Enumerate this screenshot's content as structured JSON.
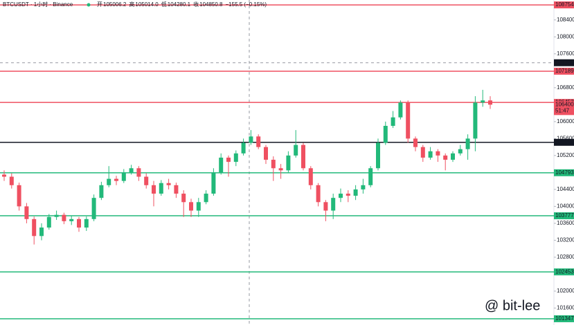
{
  "chart_data": {
    "type": "candlestick",
    "title": "BTCUSDT · 1小时 · Binance",
    "legend_items": [
      "开",
      "105006.2",
      "高",
      "105014.0",
      "低",
      "104280.1",
      "收",
      "104850.8",
      "−155.5 (−0.15%)"
    ],
    "watermark": "@ bit-lee",
    "up_color": "#22b97a",
    "down_color": "#ef5061",
    "ylim": [
      101200,
      108870
    ],
    "yticks": [
      {
        "value": 108400,
        "label": "108400.0"
      },
      {
        "value": 108000,
        "label": "108000.0"
      },
      {
        "value": 107600,
        "label": "107600.0"
      },
      {
        "value": 106800,
        "label": "106800.0"
      },
      {
        "value": 106000,
        "label": "106000.0"
      },
      {
        "value": 105600,
        "label": "105600.0"
      },
      {
        "value": 105200,
        "label": "105200.0"
      },
      {
        "value": 104400,
        "label": "104400.0"
      },
      {
        "value": 104000,
        "label": "104000.0"
      },
      {
        "value": 103600,
        "label": "103600.0"
      },
      {
        "value": 103200,
        "label": "103200.0"
      },
      {
        "value": 102800,
        "label": "102800.0"
      },
      {
        "value": 102000,
        "label": "102000.0"
      },
      {
        "value": 101600,
        "label": "101600.0"
      }
    ],
    "levels": [
      {
        "value": 108754.2,
        "color": "#ef5061"
      },
      {
        "value": 107189.4,
        "color": "#ef5061"
      },
      {
        "value": 106453.1,
        "color": "#ef5061"
      },
      {
        "value": 105511.3,
        "color": "#131722"
      },
      {
        "value": 104793.2,
        "color": "#22b97a"
      },
      {
        "value": 103777.5,
        "color": "#22b97a"
      },
      {
        "value": 102453.2,
        "color": "#22b97a"
      },
      {
        "value": 101347.4,
        "color": "#22b97a"
      }
    ],
    "crosshair_price": 107389.2,
    "last_price": 106400.0,
    "countdown": "51:47",
    "open": [
      104750,
      104700,
      104500,
      104000,
      103700,
      103300,
      103500,
      103750,
      103800,
      103650,
      103700,
      103500,
      103700,
      104200,
      104500,
      104650,
      104600,
      104800,
      104900,
      104700,
      104500,
      104300,
      104550,
      104500,
      104300,
      104100,
      103900,
      104100,
      104300,
      104800,
      105150,
      105050,
      105250,
      105500,
      105650,
      105400,
      105100,
      104900,
      104850,
      105200,
      105450,
      104900,
      104500,
      104100,
      103900,
      104200,
      104300,
      104250,
      104400,
      104500,
      104900,
      105500,
      105900,
      106100,
      106450,
      105600,
      105400,
      105150,
      105300,
      105200,
      105100,
      105250,
      105350,
      105600,
      106450,
      106500
    ],
    "high": [
      104850,
      104780,
      104560,
      104080,
      103760,
      103600,
      103820,
      103900,
      103850,
      103780,
      103750,
      103760,
      104280,
      104580,
      104950,
      104720,
      104880,
      104980,
      104950,
      104780,
      104600,
      104620,
      104650,
      104560,
      104380,
      104180,
      104200,
      104380,
      104900,
      105250,
      105200,
      105320,
      105600,
      105800,
      105700,
      105450,
      105180,
      105000,
      105300,
      105800,
      105500,
      104950,
      104550,
      104150,
      104300,
      104420,
      104380,
      104500,
      104650,
      104950,
      105600,
      106000,
      106250,
      106500,
      106500,
      105650,
      105450,
      105400,
      105350,
      105250,
      105300,
      105450,
      105700,
      106600,
      106750,
      106600
    ],
    "low": [
      104600,
      104420,
      103900,
      103600,
      103100,
      103200,
      103450,
      103680,
      103580,
      103560,
      103400,
      103420,
      103650,
      104150,
      104450,
      104500,
      104550,
      104750,
      104600,
      104420,
      104000,
      104250,
      104400,
      104200,
      103750,
      103750,
      103750,
      104050,
      104250,
      104750,
      104700,
      104950,
      105200,
      105450,
      105350,
      105000,
      104600,
      104650,
      104800,
      105150,
      104850,
      104400,
      104000,
      103650,
      103700,
      104100,
      104100,
      104150,
      104300,
      104450,
      104850,
      105450,
      105850,
      106050,
      105500,
      105300,
      105050,
      105100,
      105050,
      104850,
      105050,
      105200,
      105100,
      105300,
      106350,
      106300
    ],
    "close": [
      104700,
      104500,
      104000,
      103700,
      103300,
      103500,
      103750,
      103800,
      103650,
      103700,
      103500,
      103700,
      104200,
      104500,
      104650,
      104600,
      104800,
      104900,
      104700,
      104500,
      104300,
      104550,
      104500,
      104300,
      104100,
      103900,
      104100,
      104300,
      104800,
      105150,
      105050,
      105250,
      105500,
      105650,
      105400,
      105100,
      104900,
      104850,
      105200,
      105450,
      104900,
      104500,
      104100,
      103900,
      104200,
      104300,
      104250,
      104400,
      104500,
      104900,
      105500,
      105900,
      106100,
      106450,
      105600,
      105400,
      105150,
      105300,
      105200,
      105100,
      105250,
      105350,
      105600,
      106450,
      106500,
      106400
    ]
  }
}
